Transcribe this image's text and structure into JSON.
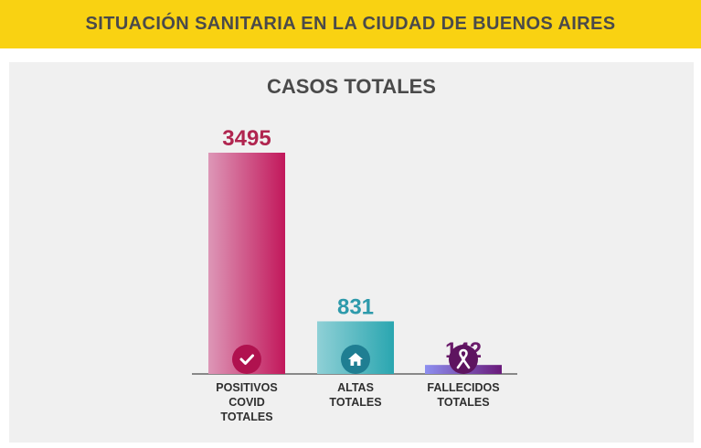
{
  "header": {
    "title": "SITUACIÓN SANITARIA EN LA CIUDAD DE BUENOS AIRES"
  },
  "chart_data": {
    "type": "bar",
    "title": "CASOS TOTALES",
    "categories": [
      [
        "POSITIVOS",
        "COVID",
        "TOTALES"
      ],
      [
        "ALTAS",
        "TOTALES"
      ],
      [
        "FALLECIDOS",
        "TOTALES"
      ]
    ],
    "values": [
      3495,
      831,
      142
    ],
    "value_labels": [
      "3495",
      "831",
      "142"
    ],
    "colors": {
      "bars": [
        {
          "from": "#dd97b7",
          "to": "#c2185b",
          "label": "#b0254f",
          "icon_bg": "#b0124f",
          "icon": "check-icon"
        },
        {
          "from": "#8fd0d6",
          "to": "#2aa6b0",
          "label": "#2e9aab",
          "icon_bg": "#1f7e92",
          "icon": "home-icon"
        },
        {
          "from": "#8d8ff0",
          "to": "#6a1a7a",
          "label": "#6a1a6a",
          "icon_bg": "#5e1460",
          "icon": "ribbon-icon"
        }
      ]
    },
    "ylim": [
      0,
      3495
    ],
    "grid": false,
    "legend": "none"
  }
}
